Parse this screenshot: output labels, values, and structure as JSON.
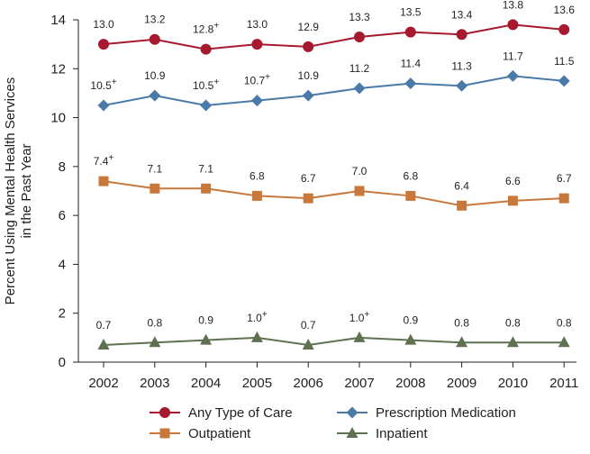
{
  "chart_data": {
    "type": "line",
    "title": "",
    "xlabel": "",
    "ylabel_lines": [
      "Percent Using Mental Health Services",
      "in the Past Year"
    ],
    "ylim": [
      0,
      14
    ],
    "yticks": [
      0,
      2,
      4,
      6,
      8,
      10,
      12,
      14
    ],
    "categories": [
      "2002",
      "2003",
      "2004",
      "2005",
      "2006",
      "2007",
      "2008",
      "2009",
      "2010",
      "2011"
    ],
    "significance_marker": "+",
    "series": [
      {
        "name": "Any Type of Care",
        "marker": "circle",
        "color": "#a6192e",
        "values": [
          13.0,
          13.2,
          12.8,
          13.0,
          12.9,
          13.3,
          13.5,
          13.4,
          13.8,
          13.6
        ],
        "labels": [
          "13.0",
          "13.2",
          "12.8",
          "13.0",
          "12.9",
          "13.3",
          "13.5",
          "13.4",
          "13.8",
          "13.6"
        ],
        "flags": [
          false,
          false,
          true,
          false,
          false,
          false,
          false,
          false,
          false,
          false
        ]
      },
      {
        "name": "Prescription Medication",
        "marker": "diamond",
        "color": "#4a7aa7",
        "values": [
          10.5,
          10.9,
          10.5,
          10.7,
          10.9,
          11.2,
          11.4,
          11.3,
          11.7,
          11.5
        ],
        "labels": [
          "10.5",
          "10.9",
          "10.5",
          "10.7",
          "10.9",
          "11.2",
          "11.4",
          "11.3",
          "11.7",
          "11.5"
        ],
        "flags": [
          true,
          false,
          true,
          true,
          false,
          false,
          false,
          false,
          false,
          false
        ]
      },
      {
        "name": "Outpatient",
        "marker": "square",
        "color": "#c7783a",
        "values": [
          7.4,
          7.1,
          7.1,
          6.8,
          6.7,
          7.0,
          6.8,
          6.4,
          6.6,
          6.7
        ],
        "labels": [
          "7.4",
          "7.1",
          "7.1",
          "6.8",
          "6.7",
          "7.0",
          "6.8",
          "6.4",
          "6.6",
          "6.7"
        ],
        "flags": [
          true,
          false,
          false,
          false,
          false,
          false,
          false,
          false,
          false,
          false
        ]
      },
      {
        "name": "Inpatient",
        "marker": "triangle",
        "color": "#5e7151",
        "values": [
          0.7,
          0.8,
          0.9,
          1.0,
          0.7,
          1.0,
          0.9,
          0.8,
          0.8,
          0.8
        ],
        "labels": [
          "0.7",
          "0.8",
          "0.9",
          "1.0",
          "0.7",
          "1.0",
          "0.9",
          "0.8",
          "0.8",
          "0.8"
        ],
        "flags": [
          false,
          false,
          false,
          true,
          false,
          true,
          false,
          false,
          false,
          false
        ]
      }
    ],
    "legend": {
      "position": "bottom",
      "order": [
        "Any Type of Care",
        "Prescription Medication",
        "Outpatient",
        "Inpatient"
      ]
    }
  }
}
